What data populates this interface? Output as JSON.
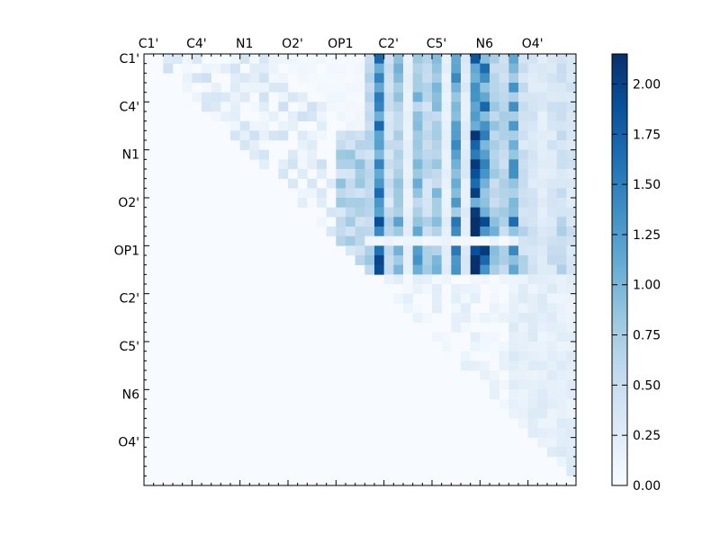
{
  "chart_data": {
    "type": "heatmap",
    "title": "",
    "xlabel": "",
    "ylabel": "",
    "n_atoms": 45,
    "cmap_from": "#f7fbff",
    "cmap_to": "#08306b",
    "cmap_stops": [
      "#f7fbff",
      "#deebf7",
      "#c6dbef",
      "#9ecae1",
      "#6baed6",
      "#4292c6",
      "#2171b5",
      "#08519c",
      "#08306b"
    ],
    "vmin": 0.0,
    "vmax": 2.15,
    "xtick_labels": [
      "C1'",
      "C4'",
      "N1",
      "O2'",
      "OP1",
      "C2'",
      "C5'",
      "N6",
      "O4'"
    ],
    "ytick_labels": [
      "C1'",
      "C4'",
      "N1",
      "O2'",
      "OP1",
      "C2'",
      "C5'",
      "N6",
      "O4'"
    ],
    "colorbar_ticks": [
      "0.00",
      "0.25",
      "0.50",
      "0.75",
      "1.00",
      "1.25",
      "1.50",
      "1.75",
      "2.00"
    ],
    "colorbar_tick_values": [
      0.0,
      0.25,
      0.5,
      0.75,
      1.0,
      1.25,
      1.5,
      1.75,
      2.0
    ],
    "matrix_rows": [
      "...........................................",
      "..33.2..2..........22..2.4.77.6..6.7.87776........",
      "......2..2..33443322..2..3..2.4576.36.7.7769.3...",
      "......2.3.3.....1.....2..3..2.4.7..6.7.9..9.6..4",
      "...........2...23....2.2.3..2.4.7.97.6.7.8..8.6.",
      "...........................................",
      "...........................................",
      "...........................................",
      "...........................................",
      "..........................................."
    ],
    "note_rows": "upper triangle only; values estimated visually"
  }
}
